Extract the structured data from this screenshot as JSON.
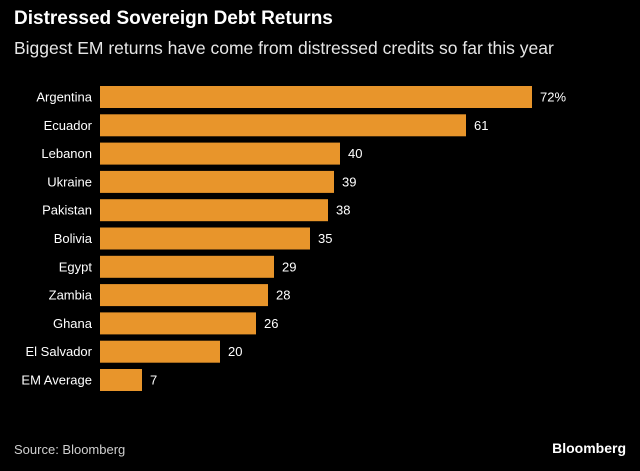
{
  "chart_data": {
    "type": "bar",
    "orientation": "horizontal",
    "title": "Distressed Sovereign Debt Returns",
    "subtitle": "Biggest EM returns have come from distressed credits so far this year",
    "categories": [
      "Argentina",
      "Ecuador",
      "Lebanon",
      "Ukraine",
      "Pakistan",
      "Bolivia",
      "Egypt",
      "Zambia",
      "Ghana",
      "El Salvador",
      "EM Average"
    ],
    "values": [
      72,
      61,
      40,
      39,
      38,
      35,
      29,
      28,
      26,
      20,
      7
    ],
    "value_labels": [
      "72%",
      "61",
      "40",
      "39",
      "38",
      "35",
      "29",
      "28",
      "26",
      "20",
      "7"
    ],
    "xlim": [
      0,
      72
    ],
    "bar_color": "#E8952B",
    "grid": false,
    "legend": false
  },
  "footer": {
    "source": "Source: Bloomberg",
    "brand": "Bloomberg"
  },
  "colors": {
    "background": "#000000",
    "text": "#ffffff"
  }
}
